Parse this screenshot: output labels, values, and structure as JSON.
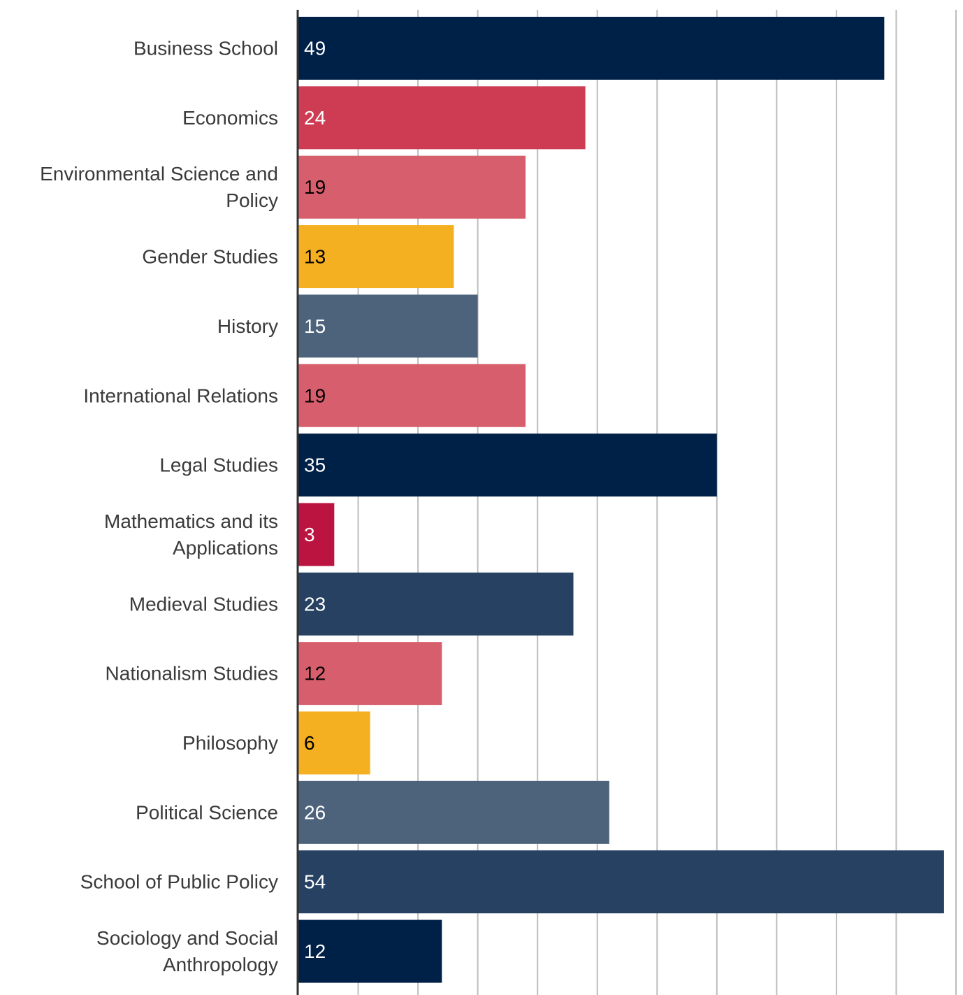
{
  "chart_data": {
    "type": "bar",
    "orientation": "horizontal",
    "categories": [
      "Business School",
      "Economics",
      "Environmental Science and Policy",
      "Gender Studies",
      "History",
      "International Relations",
      "Legal Studies",
      "Mathematics and its Applications",
      "Medieval Studies",
      "Nationalism Studies",
      "Philosophy",
      "Political Science",
      "School of Public Policy",
      "Sociology and Social Anthropology"
    ],
    "category_lines": [
      [
        "Business School"
      ],
      [
        "Economics"
      ],
      [
        "Environmental Science and",
        "Policy"
      ],
      [
        "Gender Studies"
      ],
      [
        "History"
      ],
      [
        "International Relations"
      ],
      [
        "Legal Studies"
      ],
      [
        "Mathematics and its",
        "Applications"
      ],
      [
        "Medieval Studies"
      ],
      [
        "Nationalism Studies"
      ],
      [
        "Philosophy"
      ],
      [
        "Political Science"
      ],
      [
        "School of Public Policy"
      ],
      [
        "Sociology and Social",
        "Anthropology"
      ]
    ],
    "values": [
      49,
      24,
      19,
      13,
      15,
      19,
      35,
      3,
      23,
      12,
      6,
      26,
      54,
      12
    ],
    "bar_colors": [
      "#002147",
      "#cd3c53",
      "#d75f6d",
      "#f5b021",
      "#4d627b",
      "#d75f6d",
      "#002147",
      "#bc1440",
      "#264162",
      "#d75f6d",
      "#f5b021",
      "#4d627b",
      "#264162",
      "#002147"
    ],
    "label_colors": [
      "#ffffff",
      "#ffffff",
      "#000000",
      "#000000",
      "#ffffff",
      "#000000",
      "#ffffff",
      "#ffffff",
      "#ffffff",
      "#000000",
      "#000000",
      "#ffffff",
      "#ffffff",
      "#ffffff"
    ],
    "xlim": [
      0,
      55
    ],
    "grid_step": 5,
    "grid": true,
    "x_tick_labels_shown": false,
    "title": "",
    "xlabel": "",
    "ylabel": ""
  }
}
